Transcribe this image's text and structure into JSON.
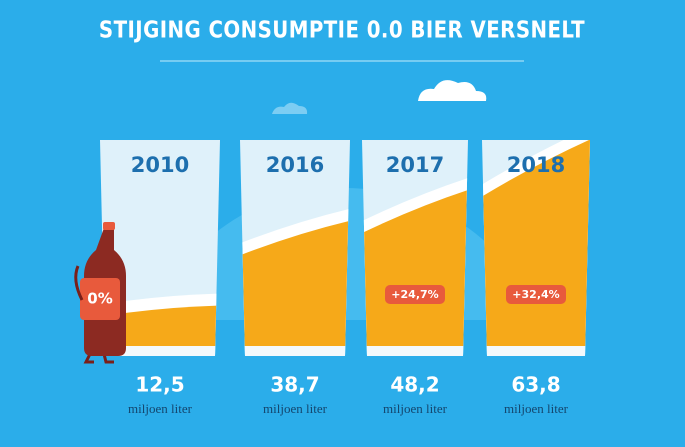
{
  "chart_data": {
    "type": "bar",
    "title": "STIJGING CONSUMPTIE 0.0 BIER VERSNELT",
    "categories": [
      "2010",
      "2016",
      "2017",
      "2018"
    ],
    "values": [
      12.5,
      38.7,
      48.2,
      63.8
    ],
    "value_labels": [
      "12,5",
      "38,7",
      "48,2",
      "63,8"
    ],
    "unit": "miljoen liter",
    "growth_labels": [
      null,
      null,
      "+24,7%",
      "+32,4%"
    ],
    "bottle_label": "0%",
    "color": "#f6a919"
  }
}
